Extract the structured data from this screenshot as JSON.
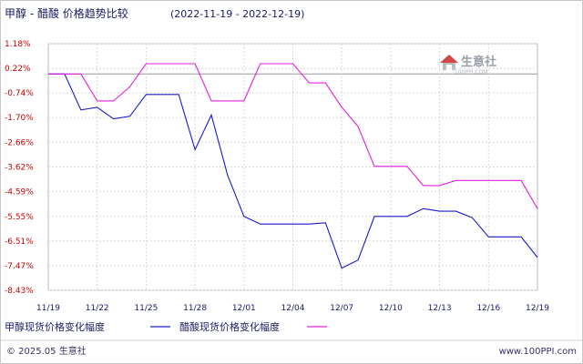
{
  "header": {
    "title": "甲醇 - 醋酸 价格趋势比较",
    "date_range": "(2022-11-19 - 2022-12-19)"
  },
  "watermark": {
    "text": "生意社",
    "subtext": "100PPI.COM"
  },
  "footer": {
    "copyright": "© 2025.05 生意社",
    "site": "www.100PPI.com"
  },
  "colors": {
    "methanol": "#1a1acc",
    "acetic_acid": "#e020e0",
    "ytick": "#cc0000",
    "grid": "#d8d8d8",
    "baseline": "#999999"
  },
  "chart_data": {
    "type": "line",
    "title": "甲醇 - 醋酸 价格趋势比较",
    "subtitle": "(2022-11-19 - 2022-12-19)",
    "xlabel": "",
    "ylabel": "",
    "ylim": [
      -8.43,
      1.18
    ],
    "grid": true,
    "legend_position": "bottom",
    "x": [
      "11/19",
      "11/20",
      "11/21",
      "11/22",
      "11/23",
      "11/24",
      "11/25",
      "11/26",
      "11/27",
      "11/28",
      "11/29",
      "11/30",
      "12/01",
      "12/02",
      "12/03",
      "12/04",
      "12/05",
      "12/06",
      "12/07",
      "12/08",
      "12/09",
      "12/10",
      "12/11",
      "12/12",
      "12/13",
      "12/14",
      "12/15",
      "12/16",
      "12/17",
      "12/18",
      "12/19"
    ],
    "x_tick_labels": [
      "11/19",
      "11/22",
      "11/25",
      "11/28",
      "12/01",
      "12/04",
      "12/07",
      "12/10",
      "12/13",
      "12/16",
      "12/19"
    ],
    "y_tick_labels": [
      "1.18%",
      "0.22%",
      "-0.74%",
      "-1.70%",
      "-2.66%",
      "-3.62%",
      "-4.59%",
      "-5.55%",
      "-6.51%",
      "-7.47%",
      "-8.43%"
    ],
    "series": [
      {
        "name": "甲醇现货价格变化幅度",
        "values": [
          0,
          0,
          -1.4,
          -1.3,
          -1.75,
          -1.65,
          -0.8,
          -0.8,
          -0.8,
          -2.95,
          -1.6,
          -3.95,
          -5.55,
          -5.85,
          -5.85,
          -5.85,
          -5.85,
          -5.8,
          -7.57,
          -7.25,
          -5.55,
          -5.55,
          -5.55,
          -5.25,
          -5.35,
          -5.35,
          -5.6,
          -6.35,
          -6.35,
          -6.35,
          -7.15
        ]
      },
      {
        "name": "醋酸现货价格变化幅度",
        "values": [
          0,
          0,
          0,
          -1.05,
          -1.05,
          -0.5,
          0.4,
          0.4,
          0.4,
          0.4,
          -1.05,
          -1.05,
          -1.05,
          0.4,
          0.4,
          0.4,
          -0.35,
          -0.35,
          -1.3,
          -2.05,
          -3.6,
          -3.6,
          -3.6,
          -4.35,
          -4.35,
          -4.15,
          -4.15,
          -4.15,
          -4.15,
          -4.15,
          -5.25
        ]
      }
    ]
  }
}
